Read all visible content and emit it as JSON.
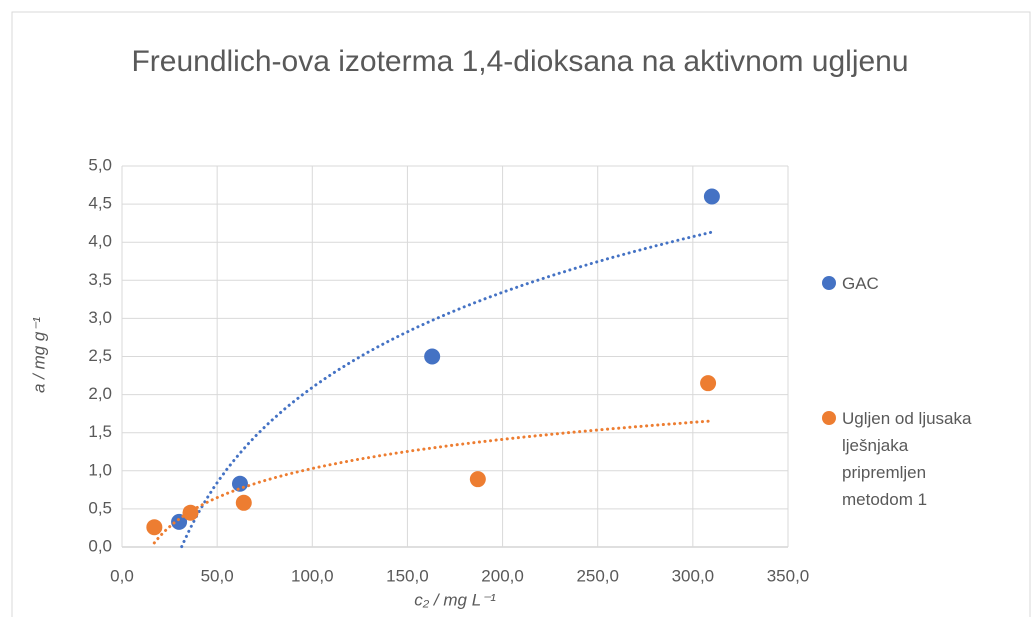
{
  "chart_data": {
    "type": "scatter",
    "title": "Freundlich-ova izoterma 1,4-dioksana na aktivnom ugljenu",
    "x_label": "c₂ / mg L⁻¹",
    "y_label": "a / mg g⁻¹",
    "xlim": [
      0,
      350
    ],
    "ylim": [
      0,
      5
    ],
    "xticks": [
      {
        "value": 0,
        "label": "0,0"
      },
      {
        "value": 50,
        "label": "50,0"
      },
      {
        "value": 100,
        "label": "100,0"
      },
      {
        "value": 150,
        "label": "150,0"
      },
      {
        "value": 200,
        "label": "200,0"
      },
      {
        "value": 250,
        "label": "250,0"
      },
      {
        "value": 300,
        "label": "300,0"
      },
      {
        "value": 350,
        "label": "350,0"
      }
    ],
    "yticks": [
      {
        "value": 0,
        "label": "0,0"
      },
      {
        "value": 0.5,
        "label": "0,5"
      },
      {
        "value": 1,
        "label": "1,0"
      },
      {
        "value": 1.5,
        "label": "1,5"
      },
      {
        "value": 2,
        "label": "2,0"
      },
      {
        "value": 2.5,
        "label": "2,5"
      },
      {
        "value": 3,
        "label": "3,0"
      },
      {
        "value": 3.5,
        "label": "3,5"
      },
      {
        "value": 4,
        "label": "4,0"
      },
      {
        "value": 4.5,
        "label": "4,5"
      },
      {
        "value": 5,
        "label": "5,0"
      }
    ],
    "grid": true,
    "legend": "right",
    "series": [
      {
        "name": "GAC",
        "color": "#4472c4",
        "trendline": "logarithmic",
        "x": [
          30,
          62,
          163,
          310
        ],
        "y": [
          0.33,
          0.83,
          2.5,
          4.6
        ]
      },
      {
        "name": "Ugljen od ljusaka lješnjaka pripremljen metodom 1",
        "color": "#ed7d31",
        "trendline": "logarithmic",
        "x": [
          17,
          36,
          64,
          187,
          308
        ],
        "y": [
          0.26,
          0.45,
          0.58,
          0.89,
          2.15
        ]
      }
    ]
  }
}
